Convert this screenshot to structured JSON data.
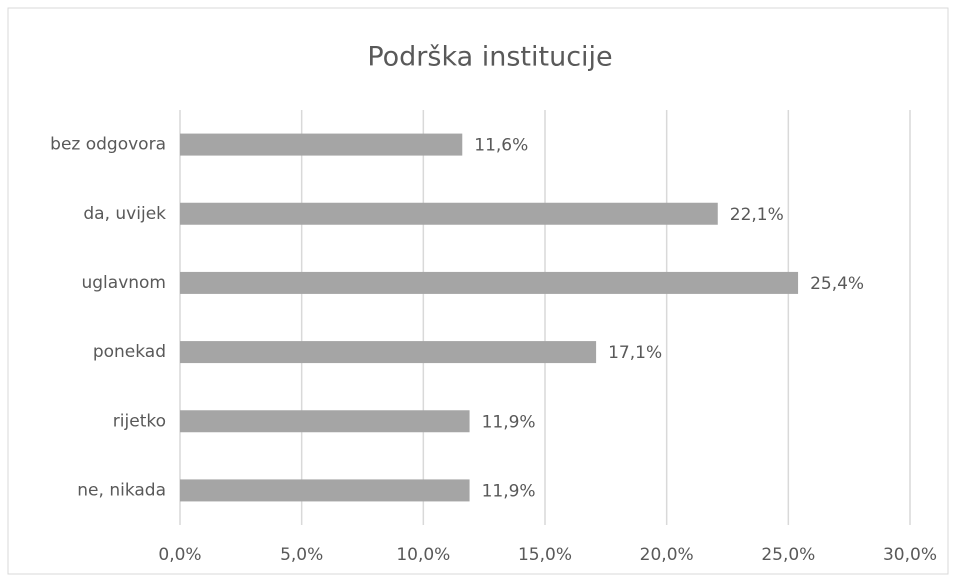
{
  "chart_data": {
    "type": "bar",
    "orientation": "horizontal",
    "title": "Podrška institucije",
    "categories": [
      "bez odgovora",
      "da, uvijek",
      "uglavnom",
      "ponekad",
      "rijetko",
      "ne, nikada"
    ],
    "values": [
      11.6,
      22.1,
      25.4,
      17.1,
      11.9,
      11.9
    ],
    "value_labels": [
      "11,6%",
      "22,1%",
      "25,4%",
      "17,1%",
      "11,9%",
      "11,9%"
    ],
    "color": "#a5a5a5",
    "xlim": [
      0,
      30
    ],
    "xticks": [
      {
        "value": 0,
        "label": "0,0%"
      },
      {
        "value": 5,
        "label": "5,0%"
      },
      {
        "value": 10,
        "label": "10,0%"
      },
      {
        "value": 15,
        "label": "15,0%"
      },
      {
        "value": 20,
        "label": "20,0%"
      },
      {
        "value": 25,
        "label": "25,0%"
      },
      {
        "value": 30,
        "label": "30,0%"
      }
    ],
    "grid": true
  }
}
